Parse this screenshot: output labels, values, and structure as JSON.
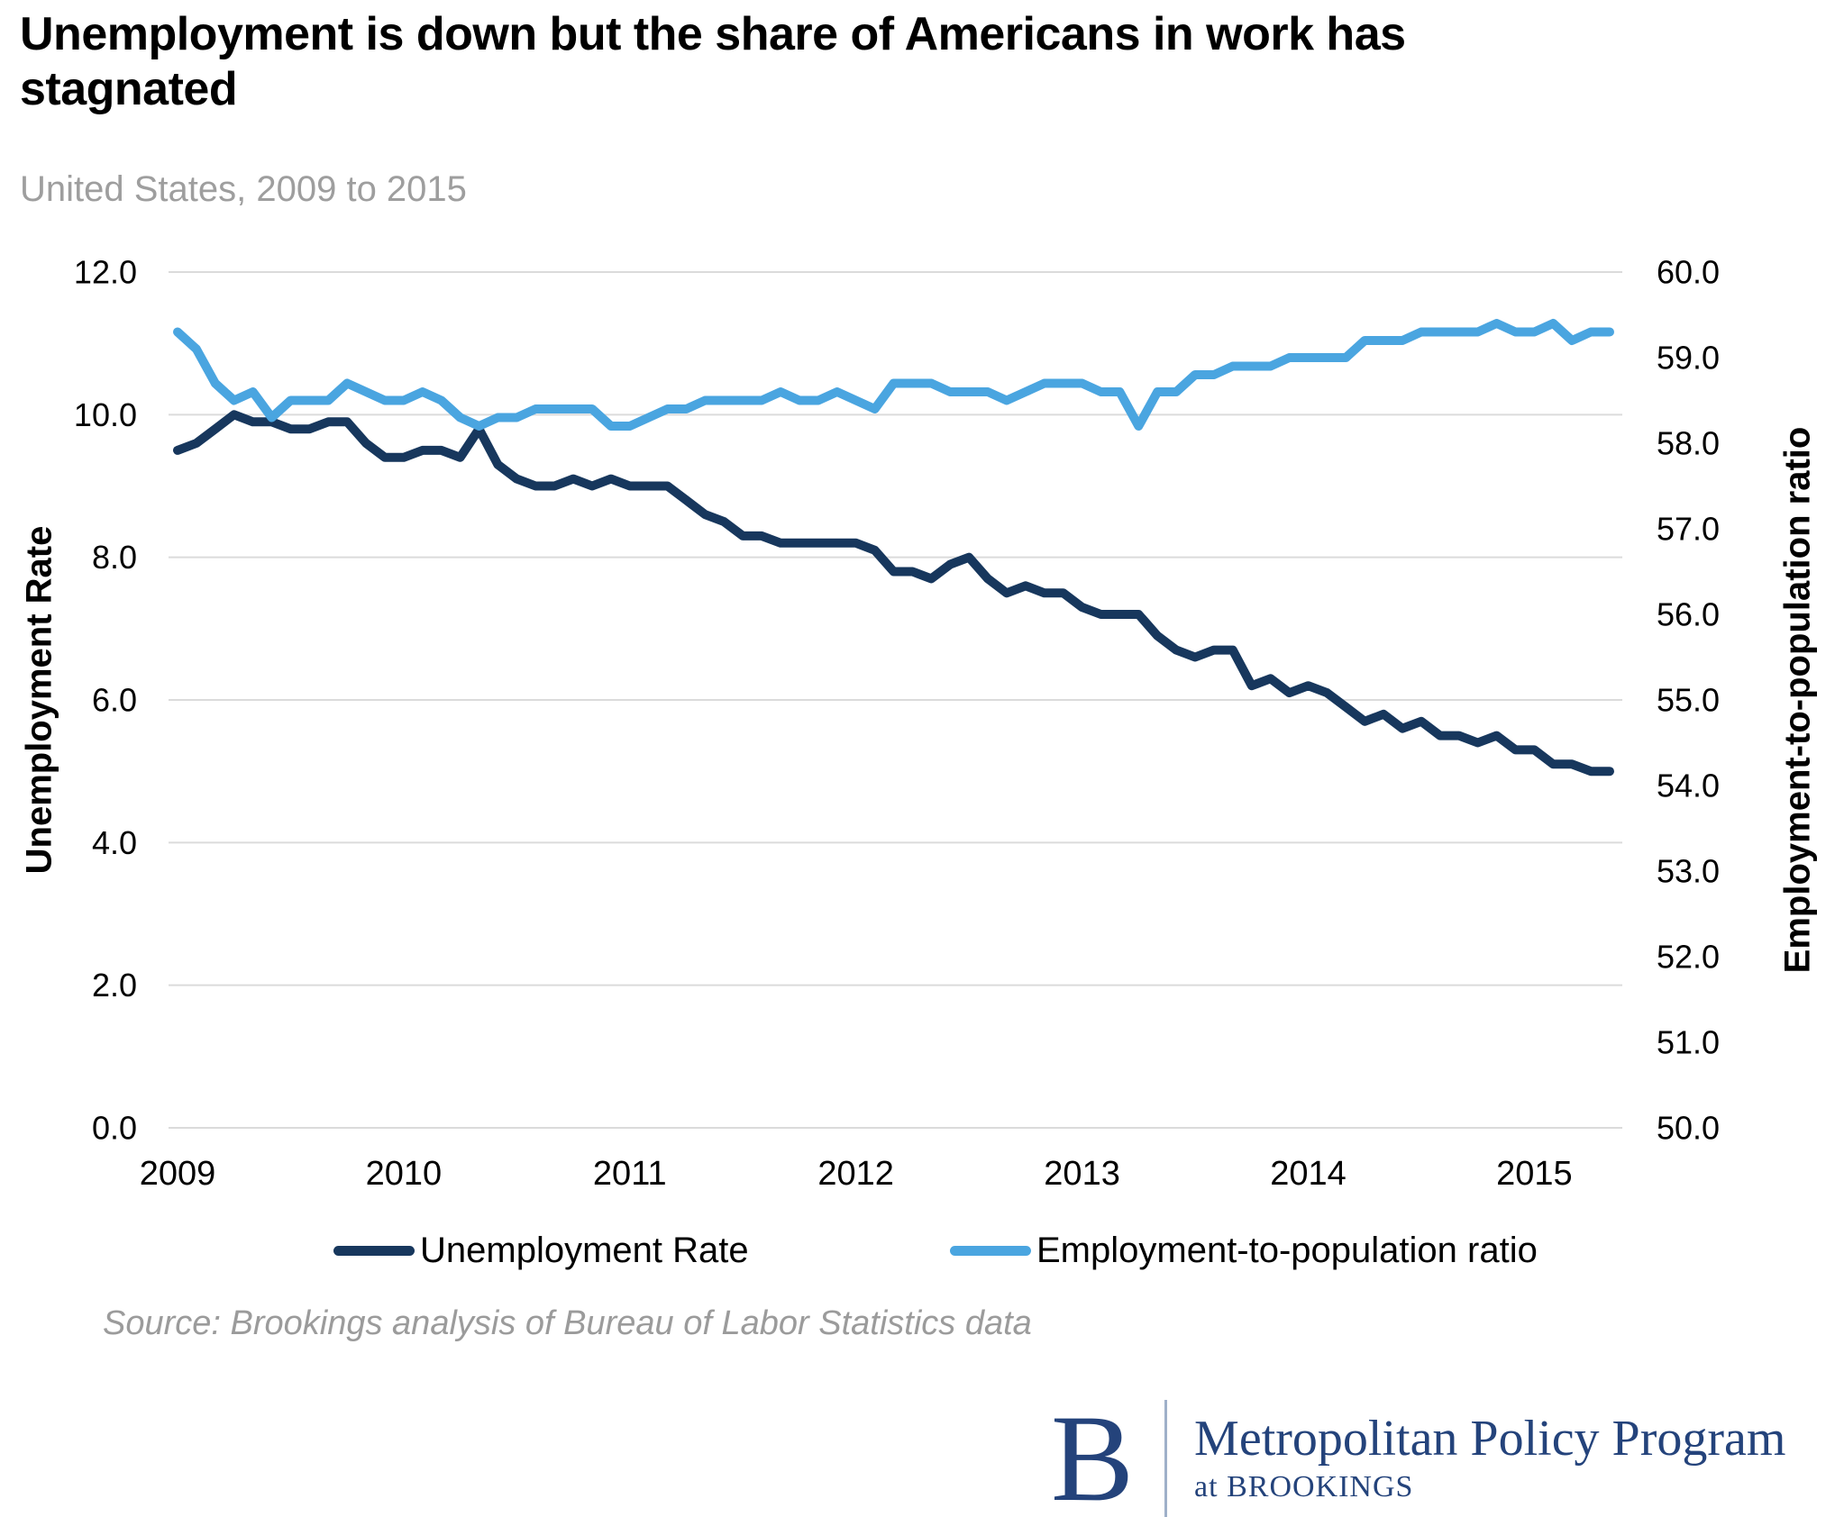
{
  "header": {
    "title": "Unemployment is down but the share of Americans in work has\nstagnated",
    "subtitle": "United States, 2009 to 2015"
  },
  "chart_data": {
    "type": "line",
    "frequency": "monthly",
    "x_start": "2009-07",
    "x_end": "2015-11",
    "x_tick_labels": [
      "2009",
      "2010",
      "2011",
      "2012",
      "2013",
      "2014",
      "2015"
    ],
    "grid": true,
    "grid_color": "#DBDBDB",
    "legend_position": "bottom",
    "left_axis": {
      "title": "Unemployment Rate",
      "min": 0,
      "max": 12,
      "tick_labels": [
        "12.0",
        "10.0",
        "8.0",
        "6.0",
        "4.0",
        "2.0",
        "0.0"
      ]
    },
    "right_axis": {
      "title": "Employment-to-population ratio",
      "min": 50,
      "max": 60,
      "tick_labels": [
        "60.0",
        "59.0",
        "58.0",
        "57.0",
        "56.0",
        "55.0",
        "54.0",
        "53.0",
        "52.0",
        "51.0",
        "50.0"
      ]
    },
    "series": [
      {
        "name": "Unemployment Rate",
        "axis": "left",
        "color": "#17375D",
        "values": [
          9.5,
          9.6,
          9.8,
          10.0,
          9.9,
          9.9,
          9.8,
          9.8,
          9.9,
          9.9,
          9.6,
          9.4,
          9.4,
          9.5,
          9.5,
          9.4,
          9.8,
          9.3,
          9.1,
          9.0,
          9.0,
          9.1,
          9.0,
          9.1,
          9.0,
          9.0,
          9.0,
          8.8,
          8.6,
          8.5,
          8.3,
          8.3,
          8.2,
          8.2,
          8.2,
          8.2,
          8.2,
          8.1,
          7.8,
          7.8,
          7.7,
          7.9,
          8.0,
          7.7,
          7.5,
          7.6,
          7.5,
          7.5,
          7.3,
          7.2,
          7.2,
          7.2,
          6.9,
          6.7,
          6.6,
          6.7,
          6.7,
          6.2,
          6.3,
          6.1,
          6.2,
          6.1,
          5.9,
          5.7,
          5.8,
          5.6,
          5.7,
          5.5,
          5.5,
          5.4,
          5.5,
          5.3,
          5.3,
          5.1,
          5.1,
          5.0,
          5.0
        ]
      },
      {
        "name": "Employment-to-population ratio",
        "axis": "right",
        "color": "#4AA5E0",
        "values": [
          59.3,
          59.1,
          58.7,
          58.5,
          58.6,
          58.3,
          58.5,
          58.5,
          58.5,
          58.7,
          58.6,
          58.5,
          58.5,
          58.6,
          58.5,
          58.3,
          58.2,
          58.3,
          58.3,
          58.4,
          58.4,
          58.4,
          58.4,
          58.2,
          58.2,
          58.3,
          58.4,
          58.4,
          58.5,
          58.5,
          58.5,
          58.5,
          58.6,
          58.5,
          58.5,
          58.6,
          58.5,
          58.4,
          58.7,
          58.7,
          58.7,
          58.6,
          58.6,
          58.6,
          58.5,
          58.6,
          58.7,
          58.7,
          58.7,
          58.6,
          58.6,
          58.2,
          58.6,
          58.6,
          58.8,
          58.8,
          58.9,
          58.9,
          58.9,
          59.0,
          59.0,
          59.0,
          59.0,
          59.2,
          59.2,
          59.2,
          59.3,
          59.3,
          59.3,
          59.3,
          59.4,
          59.3,
          59.3,
          59.4,
          59.2,
          59.3,
          59.3
        ]
      }
    ]
  },
  "legend": {
    "items": [
      {
        "label": "Unemployment Rate",
        "color": "#17375D"
      },
      {
        "label": "Employment-to-population ratio",
        "color": "#4AA5E0"
      }
    ]
  },
  "source": "Source: Brookings analysis of Bureau of Labor Statistics data",
  "logo": {
    "monogram": "B",
    "program": "Metropolitan Policy Program",
    "sub": "at BROOKINGS",
    "color": "#24437B",
    "divider_color": "#9FB0C9"
  }
}
